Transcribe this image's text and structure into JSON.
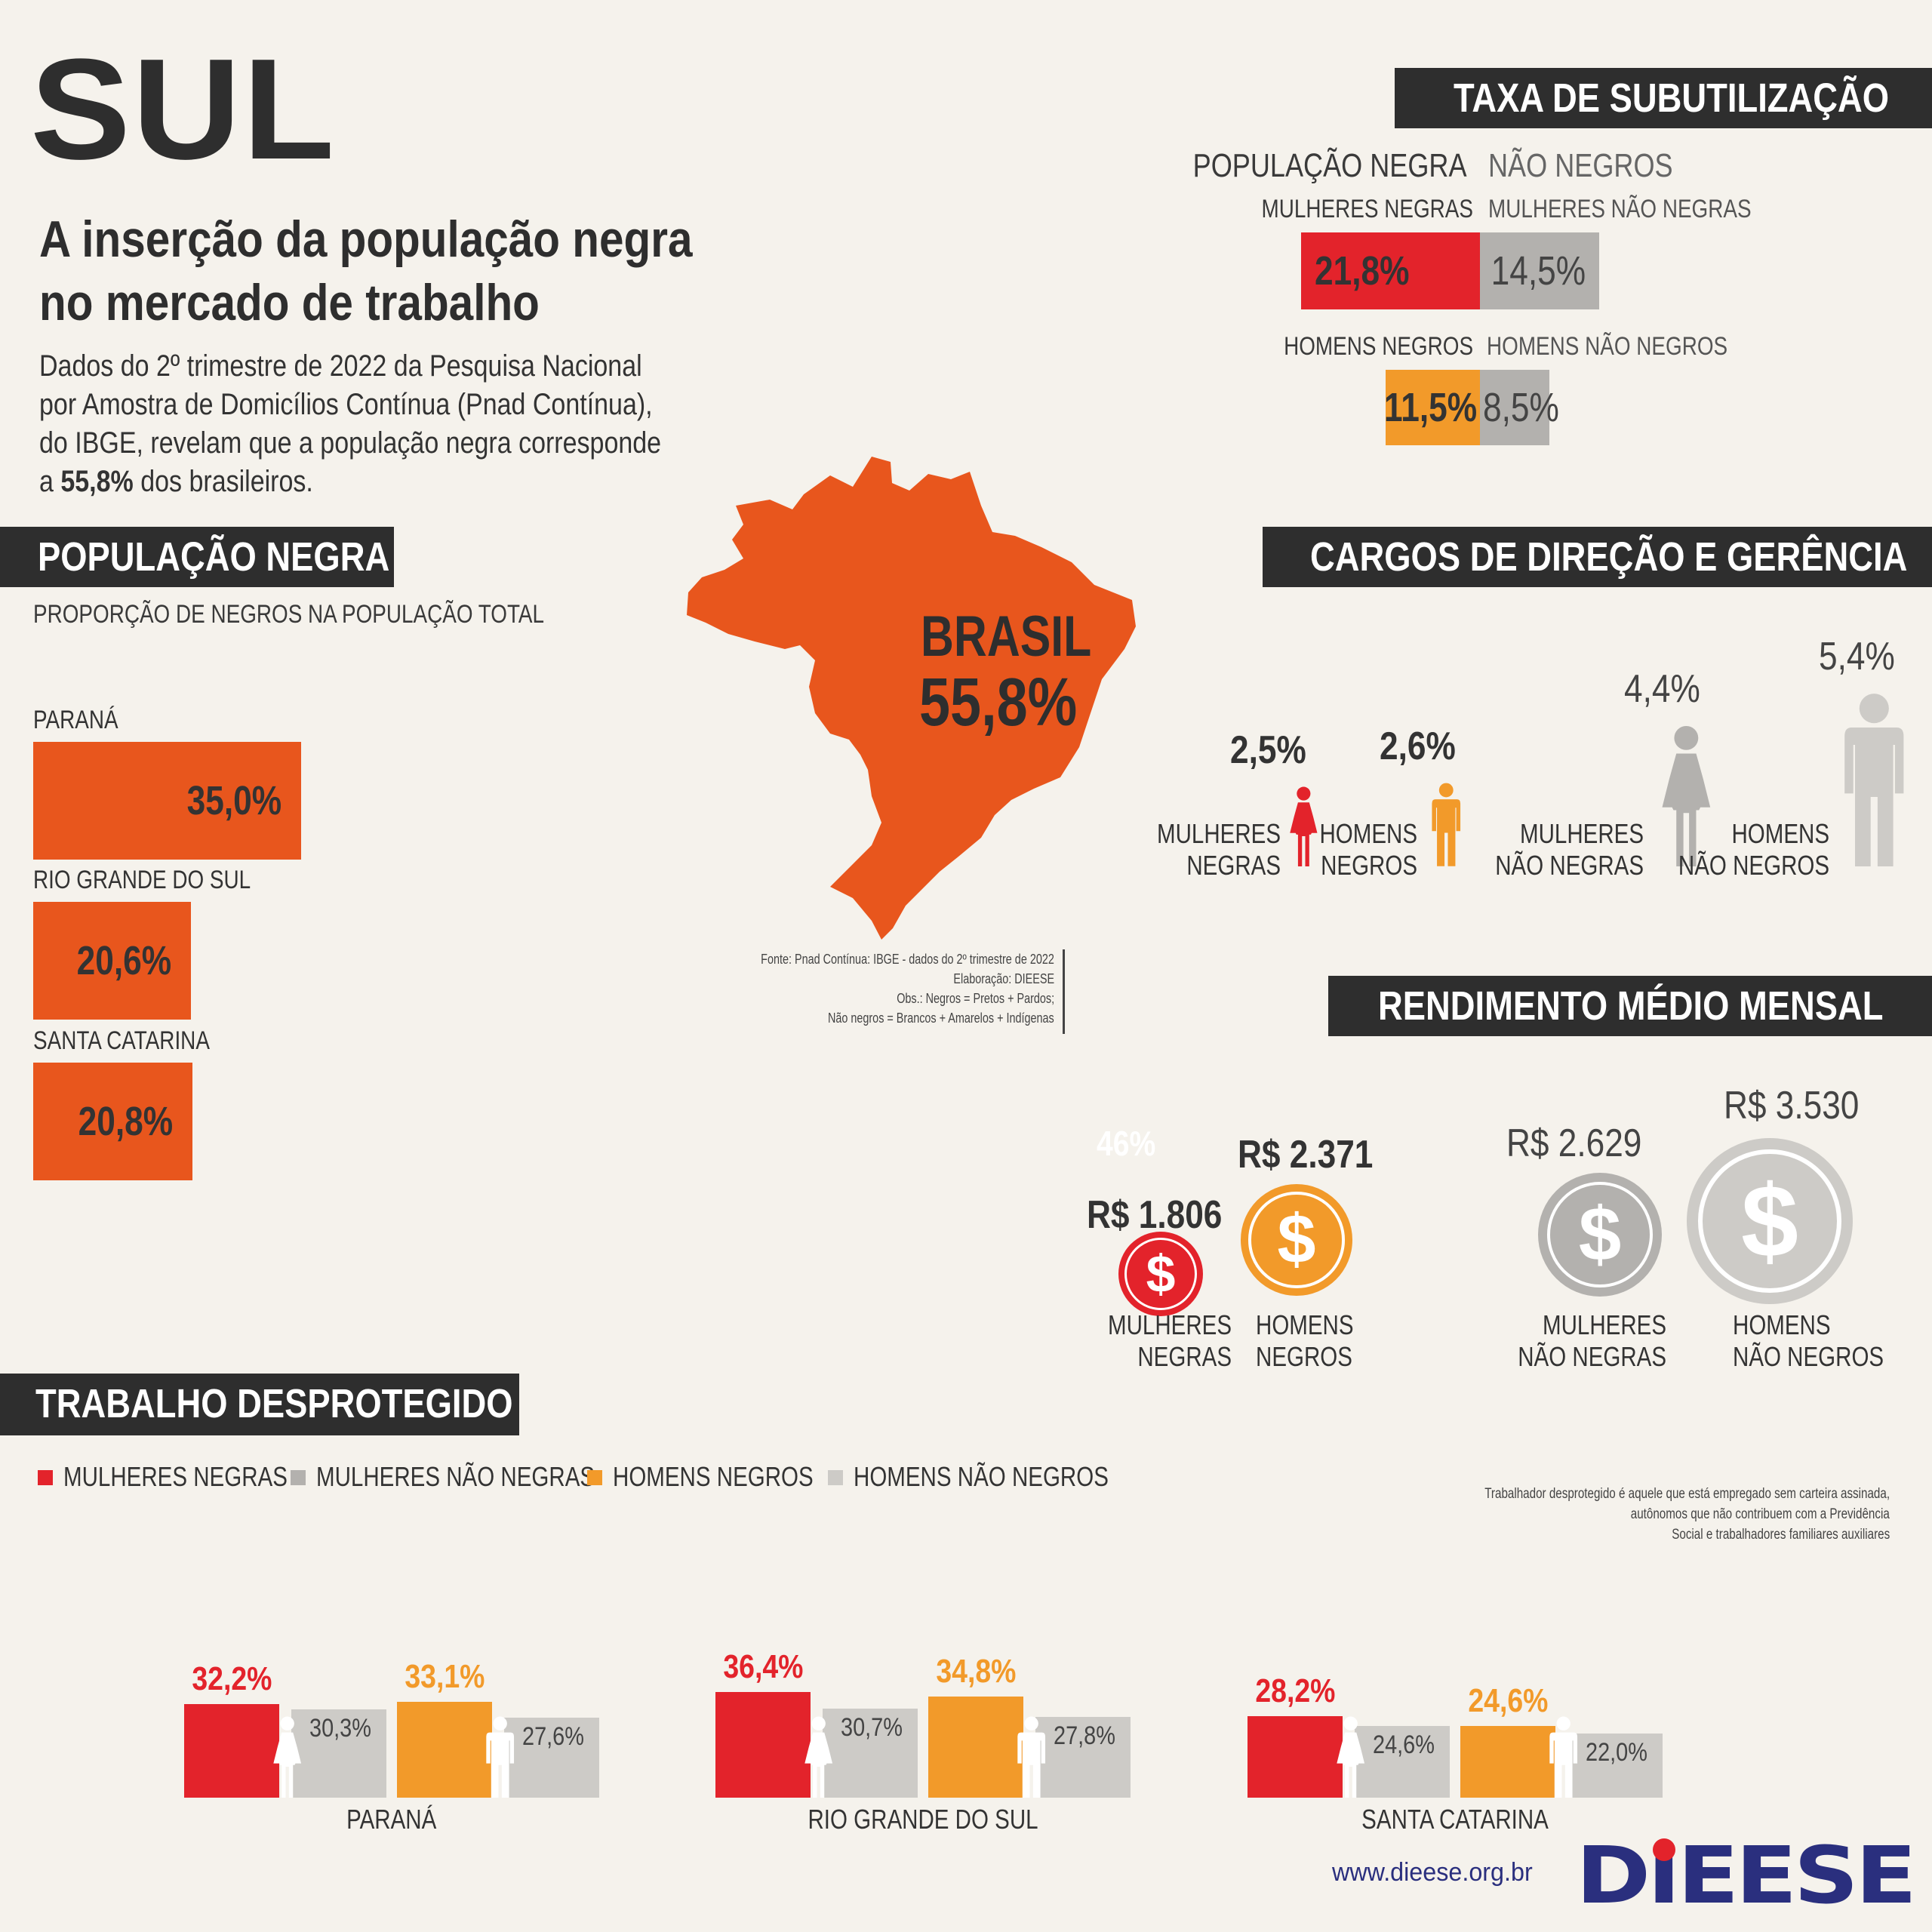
{
  "region": "SUL",
  "headline": [
    "A inserção da população negra",
    "no mercado de trabalho"
  ],
  "intro": {
    "line1": "Dados do 2º trimestre de 2022 da Pesquisa Nacional",
    "line2": "por Amostra de Domicílios Contínua (Pnad Contínua),",
    "line3": "do IBGE, revelam que a população negra corresponde",
    "line4_pre": "a ",
    "line4_bold": "55,8%",
    "line4_post": " dos brasileiros."
  },
  "pop_section": {
    "title": "POPULAÇÃO NEGRA",
    "subtitle": "PROPORÇÃO DE NEGROS NA POPULAÇÃO TOTAL"
  },
  "brazil": {
    "label": "BRASIL",
    "value": "55,8%"
  },
  "source": {
    "line1": "Fonte: Pnad Contínua: IBGE - dados do 2º trimestre de 2022",
    "line2": "Elaboração: DIEESE",
    "line3": "Obs.: Negros = Pretos + Pardos;",
    "line4": "Não negros = Brancos + Amarelos + Indígenas"
  },
  "subutil": {
    "title": "TAXA DE SUBUTILIZAÇÃO",
    "col_negra": "POPULAÇÃO NEGRA",
    "col_nao": "NÃO NEGROS",
    "women_negra_label": "MULHERES NEGRAS",
    "women_nao_label": "MULHERES NÃO NEGRAS",
    "men_negra_label": "HOMENS NEGROS",
    "men_nao_label": "HOMENS NÃO NEGROS"
  },
  "cargos": {
    "title": "CARGOS DE DIREÇÃO E GERÊNCIA",
    "mul_neg": [
      "MULHERES",
      "NEGRAS"
    ],
    "hom_neg": [
      "HOMENS",
      "NEGROS"
    ],
    "mul_nao": [
      "MULHERES",
      "NÃO NEGRAS"
    ],
    "hom_nao": [
      "HOMENS",
      "NÃO NEGROS"
    ]
  },
  "rend": {
    "title": "RENDIMENTO MÉDIO MENSAL",
    "note": "46%",
    "currency_symbol": "$",
    "mul_neg": [
      "MULHERES",
      "NEGRAS"
    ],
    "hom_neg": [
      "HOMENS",
      "NEGROS"
    ],
    "mul_nao": [
      "MULHERES",
      "NÃO NEGRAS"
    ],
    "hom_nao": [
      "HOMENS",
      "NÃO NEGROS"
    ]
  },
  "desp": {
    "title": "TRABALHO DESPROTEGIDO",
    "legend": [
      "MULHERES NEGRAS",
      "MULHERES NÃO NEGRAS",
      "HOMENS NEGROS",
      "HOMENS NÃO NEGROS"
    ],
    "note": {
      "line1": "Trabalhador desprotegido é aquele que está empregado sem carteira assinada,",
      "line2": "autônomos que não contribuem  com a Previdência",
      "line3": "Social e trabalhadores familiares auxiliares"
    }
  },
  "footer": {
    "url": "www.dieese.org.br",
    "logo": "DIEESE"
  },
  "colors": {
    "red": "#e3232b",
    "orange": "#f29a2a",
    "grey": "#b3b1ae",
    "lightgrey": "#cdcbc7",
    "map_orange": "#e8561d",
    "dark": "#2e2e2e",
    "navy": "#2a2f7e"
  },
  "chart_data": [
    {
      "type": "bar",
      "title": "PROPORÇÃO DE NEGROS NA POPULAÇÃO TOTAL",
      "categories": [
        "PARANÁ",
        "RIO GRANDE DO SUL",
        "SANTA CATARINA"
      ],
      "values": [
        35.0,
        20.6,
        20.8
      ],
      "labels": [
        "35,0%",
        "20,6%",
        "20,8%"
      ]
    },
    {
      "type": "bar",
      "title": "TAXA DE SUBUTILIZAÇÃO",
      "categories": [
        "MULHERES",
        "HOMENS"
      ],
      "series": [
        {
          "name": "POPULAÇÃO NEGRA",
          "values": [
            21.8,
            11.5
          ],
          "labels": [
            "21,8%",
            "11,5%"
          ]
        },
        {
          "name": "NÃO NEGROS",
          "values": [
            14.5,
            8.5
          ],
          "labels": [
            "14,5%",
            "8,5%"
          ]
        }
      ]
    },
    {
      "type": "bar",
      "title": "CARGOS DE DIREÇÃO E GERÊNCIA",
      "categories": [
        "MULHERES NEGRAS",
        "HOMENS NEGROS",
        "MULHERES NÃO NEGRAS",
        "HOMENS NÃO NEGROS"
      ],
      "values": [
        2.5,
        2.6,
        4.4,
        5.4
      ],
      "labels": [
        "2,5%",
        "2,6%",
        "4,4%",
        "5,4%"
      ]
    },
    {
      "type": "bar",
      "title": "RENDIMENTO MÉDIO MENSAL",
      "categories": [
        "MULHERES NEGRAS",
        "HOMENS NEGROS",
        "MULHERES NÃO NEGRAS",
        "HOMENS NÃO NEGROS"
      ],
      "values": [
        1806,
        2371,
        2629,
        3530
      ],
      "labels": [
        "R$ 1.806",
        "R$ 2.371",
        "R$ 2.629",
        "R$ 3.530"
      ]
    },
    {
      "type": "bar",
      "title": "TRABALHO DESPROTEGIDO",
      "categories": [
        "PARANÁ",
        "RIO GRANDE DO SUL",
        "SANTA CATARINA"
      ],
      "series": [
        {
          "name": "MULHERES NEGRAS",
          "values": [
            32.2,
            36.4,
            28.2
          ],
          "labels": [
            "32,2%",
            "36,4%",
            "28,2%"
          ]
        },
        {
          "name": "MULHERES NÃO NEGRAS",
          "values": [
            30.3,
            30.7,
            24.6
          ],
          "labels": [
            "30,3%",
            "30,7%",
            "24,6%"
          ]
        },
        {
          "name": "HOMENS NEGROS",
          "values": [
            33.1,
            34.8,
            24.6
          ],
          "labels": [
            "33,1%",
            "34,8%",
            "24,6%"
          ]
        },
        {
          "name": "HOMENS NÃO NEGROS",
          "values": [
            27.6,
            27.8,
            22.0
          ],
          "labels": [
            "27,6%",
            "27,8%",
            "22,0%"
          ]
        }
      ]
    }
  ]
}
